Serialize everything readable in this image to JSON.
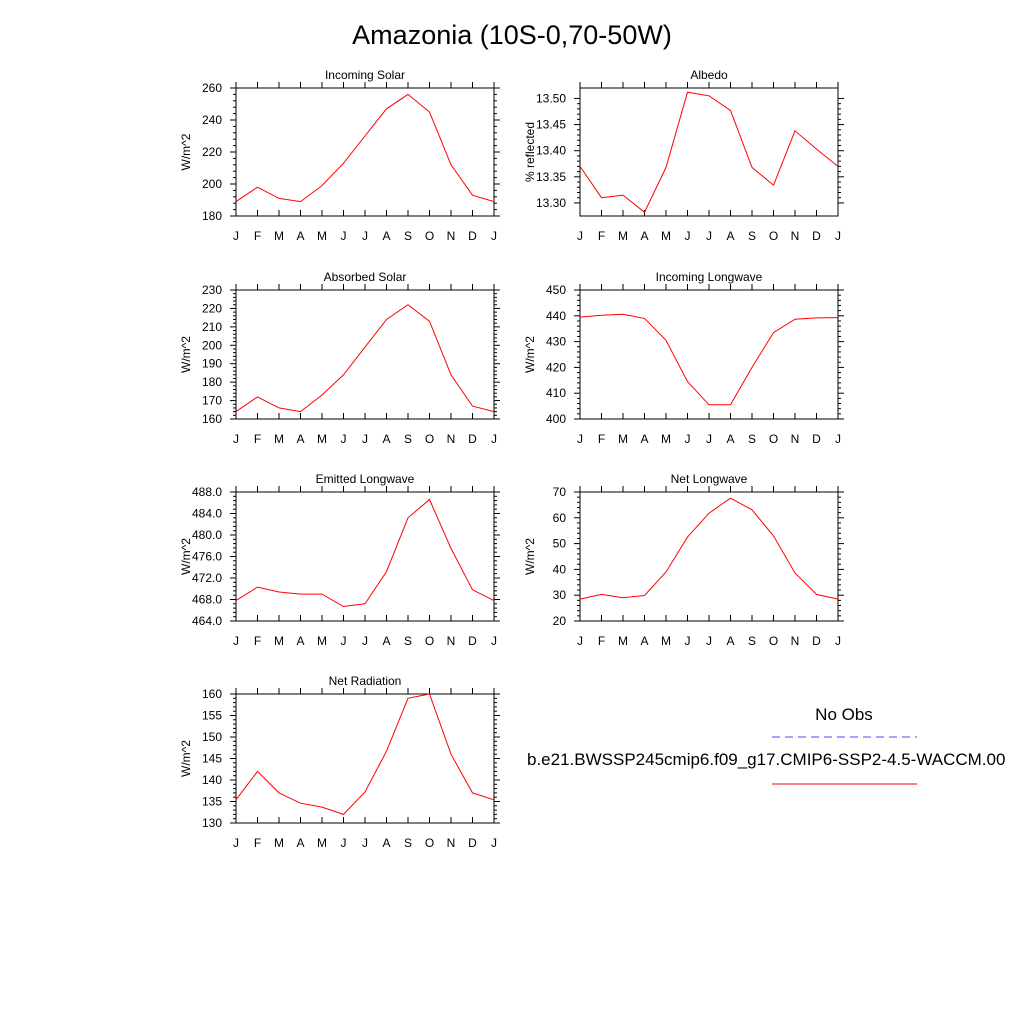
{
  "title": "Amazonia (10S-0,70-50W)",
  "months": [
    "J",
    "F",
    "M",
    "A",
    "M",
    "J",
    "J",
    "A",
    "S",
    "O",
    "N",
    "D",
    "J"
  ],
  "series_color": "#ff0000",
  "obs_color": "#4a4aff",
  "legend": {
    "obs_label": "No Obs",
    "model_label": "b.e21.BWSSP245cmip6.f09_g17.CMIP6-SSP2-4.5-WACCM.00"
  },
  "chart_data": [
    {
      "type": "line",
      "title": "Incoming Solar",
      "ylabel": "W/m^2",
      "ylim": [
        180,
        260
      ],
      "yticks": [
        180,
        200,
        220,
        240,
        260
      ],
      "ytick_labels": [
        "180",
        "200",
        "220",
        "240",
        "260"
      ],
      "series": [
        {
          "values": [
            189,
            198,
            191,
            189,
            199,
            213,
            230,
            247,
            256,
            245,
            212,
            193,
            189
          ]
        }
      ]
    },
    {
      "type": "line",
      "title": "Albedo",
      "ylabel": "% reflected",
      "ylim": [
        13.275,
        13.52
      ],
      "yticks": [
        13.3,
        13.35,
        13.4,
        13.45,
        13.5
      ],
      "ytick_labels": [
        "13.30",
        "13.35",
        "13.40",
        "13.45",
        "13.50"
      ],
      "series": [
        {
          "values": [
            13.37,
            13.31,
            13.315,
            13.282,
            13.368,
            13.512,
            13.505,
            13.477,
            13.368,
            13.334,
            13.438,
            13.403,
            13.37
          ]
        }
      ]
    },
    {
      "type": "line",
      "title": "Absorbed Solar",
      "ylabel": "W/m^2",
      "ylim": [
        160,
        230
      ],
      "yticks": [
        160,
        170,
        180,
        190,
        200,
        210,
        220,
        230
      ],
      "ytick_labels": [
        "160",
        "170",
        "180",
        "190",
        "200",
        "210",
        "220",
        "230"
      ],
      "series": [
        {
          "values": [
            164,
            172,
            166,
            164,
            173,
            184,
            199,
            214,
            222,
            213,
            184,
            167,
            164
          ]
        }
      ]
    },
    {
      "type": "line",
      "title": "Incoming Longwave",
      "ylabel": "W/m^2",
      "ylim": [
        400,
        450
      ],
      "yticks": [
        400,
        410,
        420,
        430,
        440,
        450
      ],
      "ytick_labels": [
        "400",
        "410",
        "420",
        "430",
        "440",
        "450"
      ],
      "series": [
        {
          "values": [
            439.5,
            440.2,
            440.6,
            439.0,
            430.5,
            414.5,
            405.5,
            405.5,
            420.0,
            433.5,
            438.7,
            439.2,
            439.3
          ]
        }
      ]
    },
    {
      "type": "line",
      "title": "Emitted Longwave",
      "ylabel": "W/m^2",
      "ylim": [
        464,
        488
      ],
      "yticks": [
        464,
        468,
        472,
        476,
        480,
        484,
        488
      ],
      "ytick_labels": [
        "464.0",
        "468.0",
        "472.0",
        "476.0",
        "480.0",
        "484.0",
        "488.0"
      ],
      "series": [
        {
          "values": [
            467.8,
            470.3,
            469.4,
            469.0,
            469.0,
            466.7,
            467.2,
            473.2,
            483.2,
            486.6,
            477.5,
            469.8,
            467.8
          ]
        }
      ]
    },
    {
      "type": "line",
      "title": "Net Longwave",
      "ylabel": "W/m^2",
      "ylim": [
        20,
        70
      ],
      "yticks": [
        20,
        30,
        40,
        50,
        60,
        70
      ],
      "ytick_labels": [
        "20",
        "30",
        "40",
        "50",
        "60",
        "70"
      ],
      "series": [
        {
          "values": [
            28.5,
            30.3,
            29.0,
            29.9,
            39.0,
            52.5,
            61.8,
            67.6,
            63.1,
            53.0,
            38.6,
            30.3,
            28.5
          ]
        }
      ]
    },
    {
      "type": "line",
      "title": "Net Radiation",
      "ylabel": "W/m^2",
      "ylim": [
        130,
        160
      ],
      "yticks": [
        130,
        135,
        140,
        145,
        150,
        155,
        160
      ],
      "ytick_labels": [
        "130",
        "135",
        "140",
        "145",
        "150",
        "155",
        "160"
      ],
      "series": [
        {
          "values": [
            135.4,
            142.0,
            137.0,
            134.6,
            133.7,
            132.0,
            137.2,
            146.7,
            159.0,
            160.0,
            146.0,
            137.0,
            135.4
          ]
        }
      ]
    }
  ]
}
